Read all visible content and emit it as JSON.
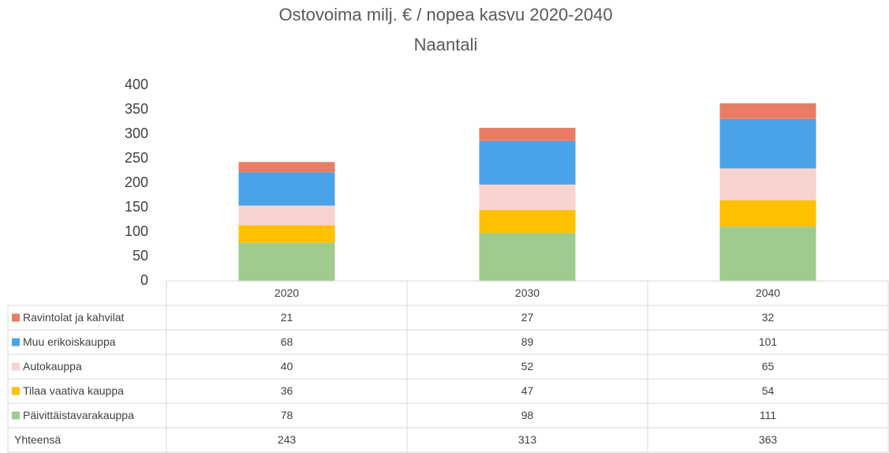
{
  "chart_data": {
    "type": "stacked_bar",
    "title": "Ostovoima milj. € / nopea kasvu 2020-2040",
    "subtitle": "Naantali",
    "categories": [
      "2020",
      "2030",
      "2040"
    ],
    "series": [
      {
        "name": "Päivittäistavarakauppa",
        "color": "#9fcb8e",
        "values": [
          78,
          98,
          111
        ]
      },
      {
        "name": "Tilaa vaativa kauppa",
        "color": "#ffc000",
        "values": [
          36,
          47,
          54
        ]
      },
      {
        "name": "Autokauppa",
        "color": "#f9d3cd",
        "values": [
          40,
          52,
          65
        ]
      },
      {
        "name": "Muu erikoiskauppa",
        "color": "#4aa3e8",
        "values": [
          68,
          89,
          101
        ]
      },
      {
        "name": "Ravintolat ja kahvilat",
        "color": "#e97c64",
        "values": [
          21,
          27,
          32
        ]
      }
    ],
    "totals_label": "Yhteensä",
    "totals": [
      243,
      313,
      363
    ],
    "ylim": [
      0,
      400
    ],
    "yticks": [
      0,
      50,
      100,
      150,
      200,
      250,
      300,
      350,
      400
    ],
    "grid": false
  }
}
